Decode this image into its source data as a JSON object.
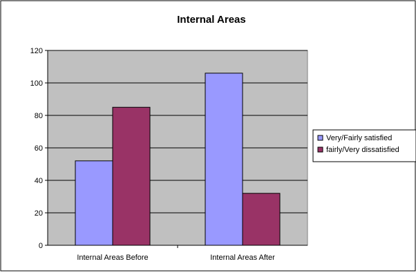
{
  "chart_data": {
    "type": "bar",
    "title": "Internal Areas",
    "categories": [
      "Internal Areas Before",
      "Internal Areas After"
    ],
    "series": [
      {
        "name": "Very/Fairly satisfied",
        "values": [
          52,
          106
        ],
        "color": "#9999ff"
      },
      {
        "name": "fairly/Very dissatisfied",
        "values": [
          85,
          32
        ],
        "color": "#993366"
      }
    ],
    "ylim": [
      0,
      120
    ],
    "yticks": [
      0,
      20,
      40,
      60,
      80,
      100,
      120
    ],
    "grid": true,
    "plot_background": "#c0c0c0",
    "legend_position": "right"
  }
}
